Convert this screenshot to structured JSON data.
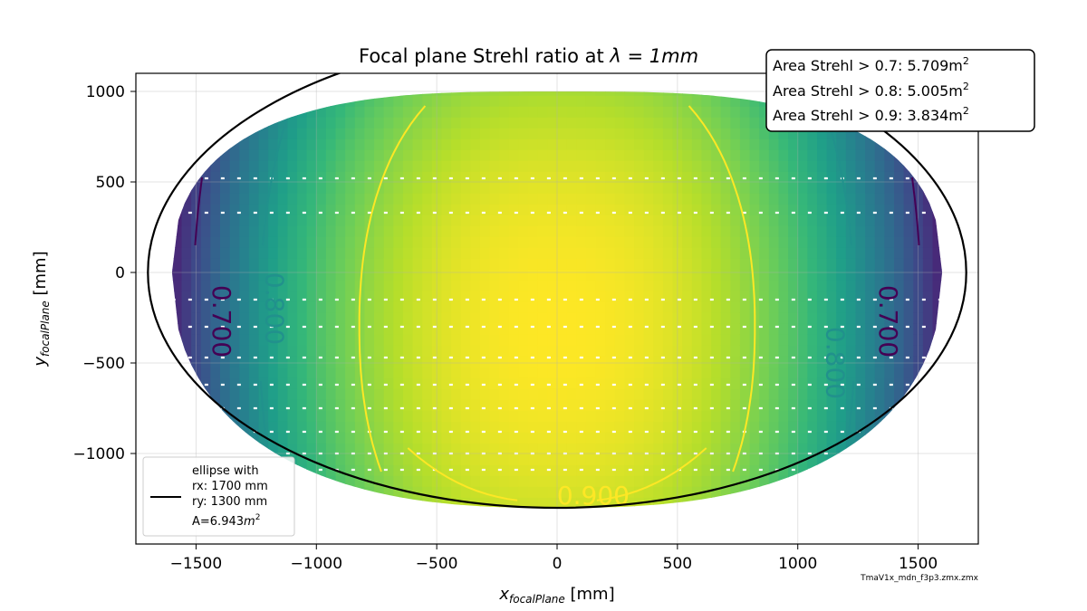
{
  "chart_data": {
    "type": "heatmap",
    "title_prefix": "Focal plane Strehl ratio at ",
    "title_math": "λ = 1mm",
    "xlabel_main": "x",
    "xlabel_sub": "focalPlane",
    "xlabel_unit": " [mm]",
    "ylabel_main": "y",
    "ylabel_sub": "focalPlane",
    "ylabel_unit": " [mm]",
    "xlim": [
      -1750,
      1750
    ],
    "ylim": [
      -1500,
      1100
    ],
    "x_ticks": [
      -1500,
      -1000,
      -500,
      0,
      500,
      1000,
      1500
    ],
    "y_ticks": [
      -1000,
      -500,
      0,
      500,
      1000
    ],
    "x_tick_labels": [
      "−1500",
      "−1000",
      "−500",
      "0",
      "500",
      "1000",
      "1500"
    ],
    "y_tick_labels": [
      "−1000",
      "−500",
      "0",
      "500",
      "1000"
    ],
    "grid": true,
    "colormap": "viridis",
    "field": {
      "x_extent": [
        -1600,
        1600
      ],
      "y_top": 1000,
      "y_bottom": -1300,
      "strehl_center": 0.96,
      "strehl_edge": 0.63
    },
    "contours": [
      {
        "level": 0.7,
        "label": "0.700",
        "color": "#440154"
      },
      {
        "level": 0.8,
        "label": "0.800",
        "color": "#21918c"
      },
      {
        "level": 0.9,
        "label": "0.900",
        "color": "#fde725"
      }
    ],
    "ellipse": {
      "rx": 1700,
      "ry": 1300,
      "color": "#000000"
    },
    "legend": {
      "lines": [
        "ellipse with",
        "rx: 1700 mm",
        "ry: 1300 mm"
      ],
      "area_prefix": "A=6.943",
      "area_unit": "m",
      "area_exp": "2",
      "placement": "lower-left"
    },
    "annotation": {
      "lines": [
        {
          "text": "Area Strehl > 0.7: 5.709m",
          "exp": "2"
        },
        {
          "text": "Area Strehl > 0.8: 5.005m",
          "exp": "2"
        },
        {
          "text": "Area Strehl > 0.9: 3.834m",
          "exp": "2"
        }
      ],
      "placement": "top-right"
    },
    "footnote": "TmaV1x_mdn_f3p3.zmx.zmx"
  }
}
